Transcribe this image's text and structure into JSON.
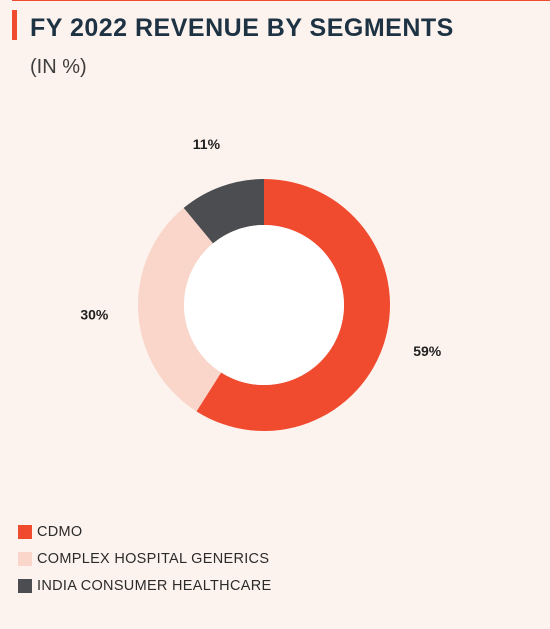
{
  "header": {
    "title": "FY 2022 REVENUE BY SEGMENTS",
    "subtitle": "(IN %)"
  },
  "chart_data": {
    "type": "pie",
    "title": "FY 2022 REVENUE BY SEGMENTS",
    "subtitle": "(IN %)",
    "donut": true,
    "slices": [
      {
        "label": "CDMO",
        "value": 59,
        "display": "59%",
        "color": "#f04a2f"
      },
      {
        "label": "COMPLEX HOSPITAL GENERICS",
        "value": 30,
        "display": "30%",
        "color": "#f9d6c9"
      },
      {
        "label": "INDIA CONSUMER HEALTHCARE",
        "value": 11,
        "display": "11%",
        "color": "#4b4d51"
      }
    ],
    "legend": "bottom-left"
  },
  "colors": {
    "accent": "#f04a2f",
    "background": "#fdf3ee",
    "title": "#1d3344"
  }
}
